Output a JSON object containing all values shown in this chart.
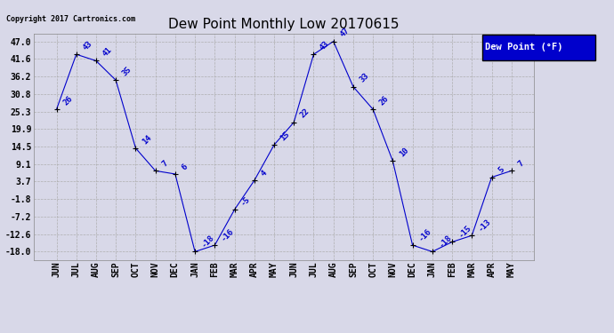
{
  "title": "Dew Point Monthly Low 20170615",
  "copyright": "Copyright 2017 Cartronics.com",
  "legend_label": "Dew Point (°F)",
  "x_labels": [
    "JUN",
    "JUL",
    "AUG",
    "SEP",
    "OCT",
    "NOV",
    "DEC",
    "JAN",
    "FEB",
    "MAR",
    "APR",
    "MAY",
    "JUN",
    "JUL",
    "AUG",
    "SEP",
    "OCT",
    "NOV",
    "DEC",
    "JAN",
    "FEB",
    "MAR",
    "APR",
    "MAY"
  ],
  "y_values": [
    26,
    43,
    41,
    35,
    14,
    7,
    6,
    -18,
    -16,
    -5,
    4,
    15,
    22,
    43,
    47,
    33,
    26,
    10,
    -16,
    -18,
    -15,
    -13,
    5,
    7
  ],
  "yticks": [
    47.0,
    41.6,
    36.2,
    30.8,
    25.3,
    19.9,
    14.5,
    9.1,
    3.7,
    -1.8,
    -7.2,
    -12.6,
    -18.0
  ],
  "ylim": [
    -20.5,
    49.5
  ],
  "line_color": "#0000cc",
  "bg_color": "#d8d8e8",
  "title_fontsize": 11,
  "label_fontsize": 6.5,
  "tick_fontsize": 7,
  "legend_bg": "#0000cc",
  "legend_text_color": "#ffffff"
}
